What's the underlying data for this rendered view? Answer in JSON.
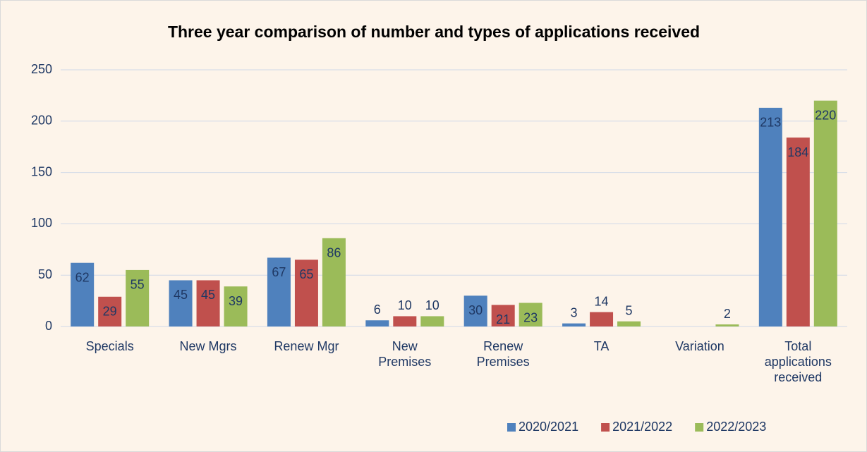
{
  "chart_data": {
    "type": "bar",
    "title": "Three year comparison of number and types of applications received",
    "categories": [
      "Specials",
      "New Mgrs",
      "Renew Mgr",
      "New Premises",
      "Renew Premises",
      "TA",
      "Variation",
      "Total applications received"
    ],
    "series": [
      {
        "name": "2020/2021",
        "color": "#4f81bd",
        "values": [
          62,
          45,
          67,
          6,
          30,
          3,
          null,
          213
        ]
      },
      {
        "name": "2021/2022",
        "color": "#c0504d",
        "values": [
          29,
          45,
          65,
          10,
          21,
          14,
          null,
          184
        ]
      },
      {
        "name": "2022/2023",
        "color": "#9bbb59",
        "values": [
          55,
          39,
          86,
          10,
          23,
          5,
          2,
          220
        ]
      }
    ],
    "ylim": [
      0,
      250
    ],
    "yticks": [
      0,
      50,
      100,
      150,
      200,
      250
    ],
    "grid": true,
    "legend": "bottom-right"
  }
}
